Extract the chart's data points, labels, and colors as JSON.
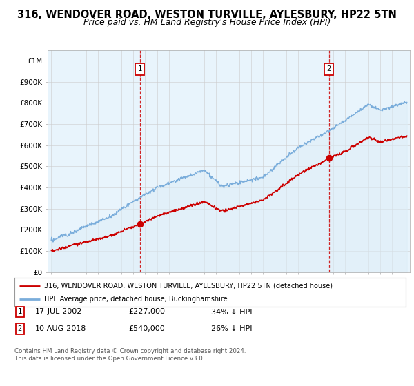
{
  "title": "316, WENDOVER ROAD, WESTON TURVILLE, AYLESBURY, HP22 5TN",
  "subtitle": "Price paid vs. HM Land Registry's House Price Index (HPI)",
  "title_fontsize": 10.5,
  "subtitle_fontsize": 9,
  "ylabel_ticks": [
    "£0",
    "£100K",
    "£200K",
    "£300K",
    "£400K",
    "£500K",
    "£600K",
    "£700K",
    "£800K",
    "£900K",
    "£1M"
  ],
  "ytick_values": [
    0,
    100000,
    200000,
    300000,
    400000,
    500000,
    600000,
    700000,
    800000,
    900000,
    1000000
  ],
  "ylim": [
    0,
    1050000
  ],
  "xlim_start": 1994.7,
  "xlim_end": 2025.5,
  "hpi_color": "#7aaddb",
  "hpi_fill_color": "#ddeeff",
  "price_color": "#cc0000",
  "point1_x": 2002.54,
  "point1_y": 227000,
  "point2_x": 2018.61,
  "point2_y": 540000,
  "dashed_color": "#cc0000",
  "legend_line1": "316, WENDOVER ROAD, WESTON TURVILLE, AYLESBURY, HP22 5TN (detached house)",
  "legend_line2": "HPI: Average price, detached house, Buckinghamshire",
  "annot1_date": "17-JUL-2002",
  "annot1_price": "£227,000",
  "annot1_hpi": "34% ↓ HPI",
  "annot2_date": "10-AUG-2018",
  "annot2_price": "£540,000",
  "annot2_hpi": "26% ↓ HPI",
  "copyright": "Contains HM Land Registry data © Crown copyright and database right 2024.\nThis data is licensed under the Open Government Licence v3.0.",
  "background_color": "#ffffff",
  "grid_color": "#cccccc"
}
